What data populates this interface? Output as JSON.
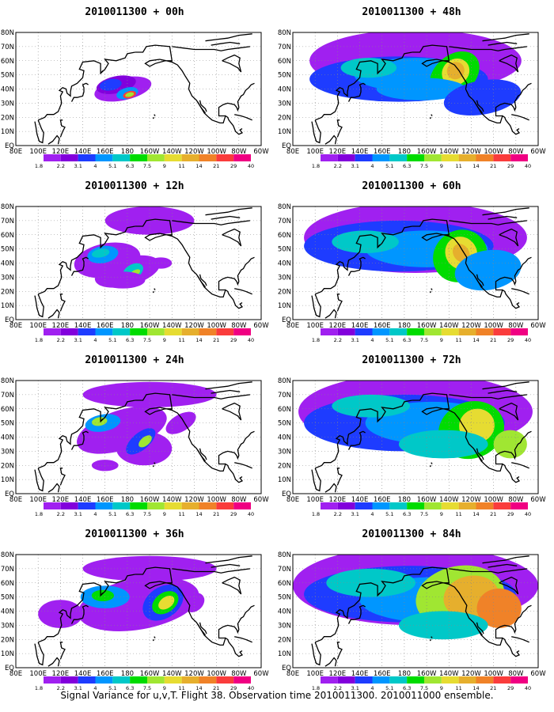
{
  "caption": "Signal Variance for u,v,T. Flight 38. Observation time 2010011300. 2010011000 ensemble.",
  "lat_labels": [
    "80N",
    "70N",
    "60N",
    "50N",
    "40N",
    "30N",
    "20N",
    "10N",
    "EQ"
  ],
  "lon_labels": [
    "80E",
    "100E",
    "120E",
    "140E",
    "160E",
    "180",
    "160W",
    "140W",
    "120W",
    "100W",
    "80W",
    "60W"
  ],
  "colorbar": {
    "levels": [
      "1.8",
      "2.2",
      "3.1",
      "4",
      "5.1",
      "6.3",
      "7.5",
      "9",
      "11",
      "14",
      "21",
      "29",
      "40"
    ],
    "colors": [
      "#a020f0",
      "#8200dc",
      "#1e3cff",
      "#0096ff",
      "#00c8c8",
      "#00dc00",
      "#a0e632",
      "#e6dc32",
      "#e6af2d",
      "#f08228",
      "#fa3c3c",
      "#f00082"
    ]
  },
  "panels": [
    {
      "title": "2010011300 + 00h",
      "lead_hours": 0
    },
    {
      "title": "2010011300 + 48h",
      "lead_hours": 48
    },
    {
      "title": "2010011300 + 12h",
      "lead_hours": 12
    },
    {
      "title": "2010011300 + 60h",
      "lead_hours": 60
    },
    {
      "title": "2010011300 + 24h",
      "lead_hours": 24
    },
    {
      "title": "2010011300 + 72h",
      "lead_hours": 72
    },
    {
      "title": "2010011300 + 36h",
      "lead_hours": 36
    },
    {
      "title": "2010011300 + 84h",
      "lead_hours": 84
    }
  ]
}
